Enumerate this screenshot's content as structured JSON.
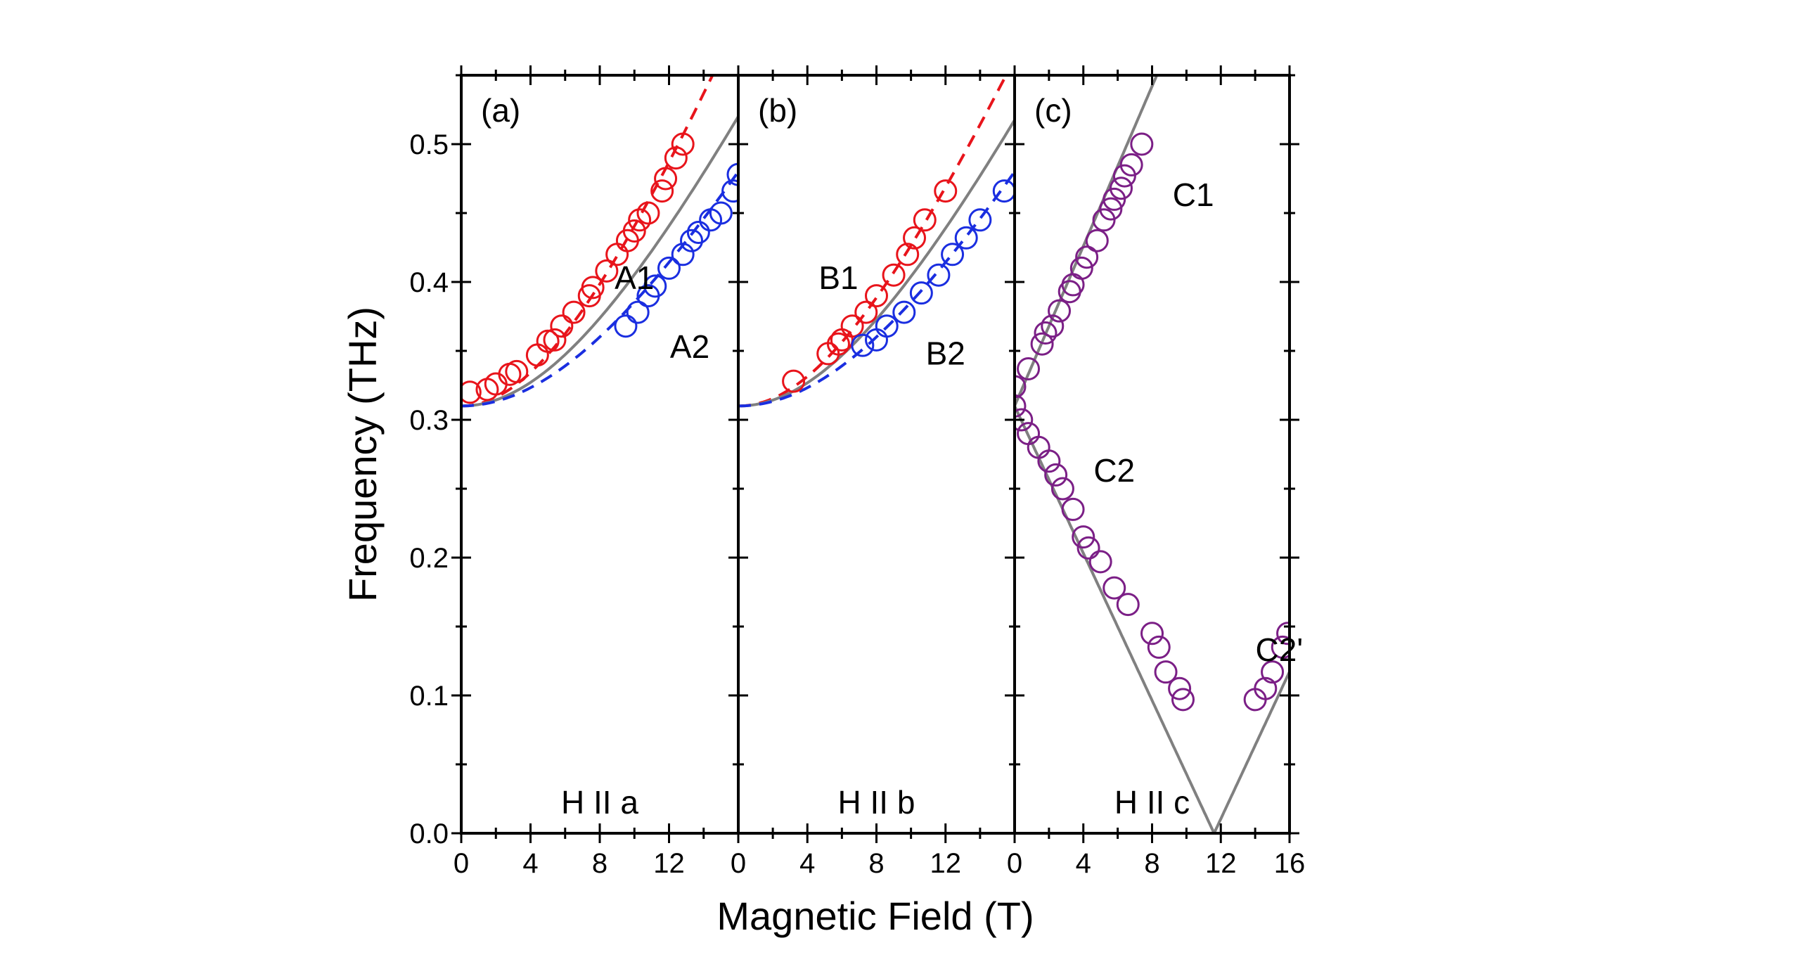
{
  "chart_data": [
    {
      "type": "scatter",
      "panel_label": "(a)",
      "condition": "H II a",
      "xlabel": "Magnetic Field (T)",
      "ylabel": "Frequency (THz)",
      "xlim": [
        0,
        16
      ],
      "ylim": [
        0,
        0.55
      ],
      "xticks": [
        "0",
        "4",
        "8",
        "12"
      ],
      "yticks": [
        "0.0",
        "0.1",
        "0.2",
        "0.3",
        "0.4",
        "0.5"
      ],
      "series": [
        {
          "name": "A1",
          "color": "#e8141b",
          "points": [
            [
              0.5,
              0.32
            ],
            [
              1.5,
              0.322
            ],
            [
              2,
              0.326
            ],
            [
              2.8,
              0.333
            ],
            [
              3.2,
              0.335
            ],
            [
              4.4,
              0.347
            ],
            [
              5,
              0.357
            ],
            [
              5.4,
              0.358
            ],
            [
              5.8,
              0.368
            ],
            [
              6.5,
              0.378
            ],
            [
              7.4,
              0.39
            ],
            [
              7.6,
              0.396
            ],
            [
              8.4,
              0.408
            ],
            [
              9,
              0.42
            ],
            [
              9.6,
              0.43
            ],
            [
              10,
              0.437
            ],
            [
              10.3,
              0.445
            ],
            [
              10.8,
              0.45
            ],
            [
              11.6,
              0.466
            ],
            [
              11.8,
              0.475
            ],
            [
              12.4,
              0.49
            ],
            [
              12.8,
              0.5
            ]
          ]
        },
        {
          "name": "A2",
          "color": "#1a2ee0",
          "points": [
            [
              9.5,
              0.368
            ],
            [
              10.2,
              0.378
            ],
            [
              10.8,
              0.39
            ],
            [
              11.2,
              0.397
            ],
            [
              12,
              0.41
            ],
            [
              12.8,
              0.42
            ],
            [
              13.3,
              0.43
            ],
            [
              13.7,
              0.436
            ],
            [
              14.4,
              0.445
            ],
            [
              15,
              0.45
            ],
            [
              15.7,
              0.466
            ],
            [
              16,
              0.478
            ]
          ]
        }
      ],
      "fits": [
        {
          "color": "#e8141b",
          "style": "dashed",
          "f0": 0.31,
          "slope": 0.0313
        },
        {
          "color": "#808080",
          "style": "solid",
          "f0": 0.31,
          "slope": 0.0261
        },
        {
          "color": "#1a2ee0",
          "style": "dashed",
          "f0": 0.31,
          "slope": 0.0229
        }
      ]
    },
    {
      "type": "scatter",
      "panel_label": "(b)",
      "condition": "H II b",
      "xlim": [
        0,
        16
      ],
      "ylim": [
        0,
        0.55
      ],
      "xticks": [
        "0",
        "4",
        "8",
        "12"
      ],
      "series": [
        {
          "name": "B1",
          "color": "#e8141b",
          "points": [
            [
              3.2,
              0.328
            ],
            [
              5.2,
              0.348
            ],
            [
              5.8,
              0.355
            ],
            [
              6,
              0.358
            ],
            [
              6.6,
              0.368
            ],
            [
              7.4,
              0.378
            ],
            [
              8,
              0.39
            ],
            [
              9,
              0.405
            ],
            [
              9.8,
              0.42
            ],
            [
              10.2,
              0.432
            ],
            [
              10.8,
              0.445
            ],
            [
              12,
              0.466
            ]
          ]
        },
        {
          "name": "B2",
          "color": "#1a2ee0",
          "points": [
            [
              7.2,
              0.354
            ],
            [
              8,
              0.358
            ],
            [
              8.6,
              0.368
            ],
            [
              9.6,
              0.378
            ],
            [
              10.6,
              0.392
            ],
            [
              11.6,
              0.405
            ],
            [
              12.4,
              0.42
            ],
            [
              13.2,
              0.432
            ],
            [
              14,
              0.445
            ],
            [
              15.4,
              0.466
            ]
          ]
        }
      ],
      "fits": [
        {
          "color": "#e8141b",
          "style": "dashed",
          "f0": 0.31,
          "slope": 0.0293
        },
        {
          "color": "#808080",
          "style": "solid",
          "f0": 0.31,
          "slope": 0.0259
        },
        {
          "color": "#1a2ee0",
          "style": "dashed",
          "f0": 0.31,
          "slope": 0.0229
        }
      ]
    },
    {
      "type": "scatter",
      "panel_label": "(c)",
      "condition": "H II c",
      "xlim": [
        0,
        16
      ],
      "ylim": [
        0,
        0.55
      ],
      "xticks": [
        "0",
        "4",
        "8",
        "12",
        "16"
      ],
      "series": [
        {
          "name": "C1",
          "color": "#7b1f86",
          "points": [
            [
              0,
              0.324
            ],
            [
              0.8,
              0.337
            ],
            [
              1.6,
              0.355
            ],
            [
              1.8,
              0.363
            ],
            [
              2.2,
              0.368
            ],
            [
              2.6,
              0.379
            ],
            [
              3.2,
              0.393
            ],
            [
              3.4,
              0.398
            ],
            [
              3.9,
              0.41
            ],
            [
              4.2,
              0.418
            ],
            [
              4.8,
              0.43
            ],
            [
              5.2,
              0.445
            ],
            [
              5.6,
              0.453
            ],
            [
              5.8,
              0.46
            ],
            [
              6.2,
              0.468
            ],
            [
              6.4,
              0.477
            ],
            [
              6.8,
              0.485
            ],
            [
              7.4,
              0.5
            ]
          ]
        },
        {
          "name": "C2",
          "color": "#7b1f86",
          "points": [
            [
              0,
              0.31
            ],
            [
              0.4,
              0.3
            ],
            [
              0.8,
              0.29
            ],
            [
              1.4,
              0.28
            ],
            [
              2,
              0.27
            ],
            [
              2.4,
              0.26
            ],
            [
              2.8,
              0.25
            ],
            [
              3.4,
              0.235
            ],
            [
              4,
              0.215
            ],
            [
              4.3,
              0.207
            ],
            [
              5,
              0.197
            ],
            [
              5.8,
              0.178
            ],
            [
              6.6,
              0.166
            ],
            [
              8,
              0.145
            ],
            [
              8.4,
              0.135
            ],
            [
              8.8,
              0.117
            ],
            [
              9.6,
              0.105
            ],
            [
              9.8,
              0.097
            ]
          ]
        },
        {
          "name": "C2'",
          "color": "#7b1f86",
          "points": [
            [
              14,
              0.097
            ],
            [
              14.6,
              0.105
            ],
            [
              15,
              0.117
            ],
            [
              15.6,
              0.135
            ],
            [
              15.9,
              0.145
            ]
          ]
        }
      ],
      "lines": [
        {
          "color": "#808080",
          "f0": 0.31,
          "slope": 0.029
        },
        {
          "color": "#808080",
          "f0": 0.31,
          "slope": -0.0267,
          "absolute": true
        }
      ]
    }
  ]
}
